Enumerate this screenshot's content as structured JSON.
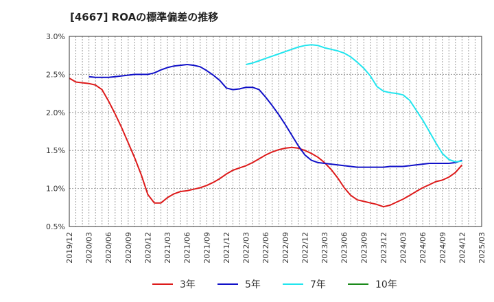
{
  "chart_data": {
    "type": "line",
    "title": "[4667]  ROAの標準偏差の推移",
    "xlabel": "",
    "ylabel": "",
    "ylim": [
      0.5,
      3.0
    ],
    "y_ticks": [
      "3.0%",
      "2.5%",
      "2.0%",
      "1.5%",
      "1.0%",
      "0.5%"
    ],
    "x_ticks": [
      "2019/12",
      "2020/03",
      "2020/06",
      "2020/09",
      "2020/12",
      "2021/03",
      "2021/06",
      "2021/09",
      "2021/12",
      "2022/03",
      "2022/06",
      "2022/09",
      "2022/12",
      "2023/03",
      "2023/06",
      "2023/09",
      "2023/12",
      "2024/03",
      "2024/06",
      "2024/09",
      "2024/12",
      "2025/03"
    ],
    "grid": true,
    "legend_position": "bottom",
    "series": [
      {
        "name": "3年",
        "color": "#dd1a1a",
        "points": [
          [
            "2019/12",
            2.45
          ],
          [
            "2020/01",
            2.4
          ],
          [
            "2020/02",
            2.39
          ],
          [
            "2020/03",
            2.38
          ],
          [
            "2020/04",
            2.36
          ],
          [
            "2020/05",
            2.3
          ],
          [
            "2020/06",
            2.15
          ],
          [
            "2020/07",
            1.98
          ],
          [
            "2020/08",
            1.8
          ],
          [
            "2020/09",
            1.6
          ],
          [
            "2020/10",
            1.4
          ],
          [
            "2020/11",
            1.18
          ],
          [
            "2020/12",
            0.92
          ],
          [
            "2021/01",
            0.81
          ],
          [
            "2021/02",
            0.81
          ],
          [
            "2021/03",
            0.88
          ],
          [
            "2021/04",
            0.93
          ],
          [
            "2021/05",
            0.96
          ],
          [
            "2021/06",
            0.97
          ],
          [
            "2021/07",
            0.99
          ],
          [
            "2021/08",
            1.01
          ],
          [
            "2021/09",
            1.04
          ],
          [
            "2021/10",
            1.08
          ],
          [
            "2021/11",
            1.13
          ],
          [
            "2021/12",
            1.19
          ],
          [
            "2022/01",
            1.24
          ],
          [
            "2022/02",
            1.27
          ],
          [
            "2022/03",
            1.3
          ],
          [
            "2022/04",
            1.34
          ],
          [
            "2022/05",
            1.39
          ],
          [
            "2022/06",
            1.44
          ],
          [
            "2022/07",
            1.48
          ],
          [
            "2022/08",
            1.51
          ],
          [
            "2022/09",
            1.53
          ],
          [
            "2022/10",
            1.54
          ],
          [
            "2022/11",
            1.53
          ],
          [
            "2022/12",
            1.5
          ],
          [
            "2023/01",
            1.46
          ],
          [
            "2023/02",
            1.41
          ],
          [
            "2023/03",
            1.34
          ],
          [
            "2023/04",
            1.25
          ],
          [
            "2023/05",
            1.14
          ],
          [
            "2023/06",
            1.01
          ],
          [
            "2023/07",
            0.91
          ],
          [
            "2023/08",
            0.85
          ],
          [
            "2023/09",
            0.83
          ],
          [
            "2023/10",
            0.81
          ],
          [
            "2023/11",
            0.79
          ],
          [
            "2023/12",
            0.76
          ],
          [
            "2024/01",
            0.78
          ],
          [
            "2024/02",
            0.82
          ],
          [
            "2024/03",
            0.86
          ],
          [
            "2024/04",
            0.91
          ],
          [
            "2024/05",
            0.96
          ],
          [
            "2024/06",
            1.01
          ],
          [
            "2024/07",
            1.05
          ],
          [
            "2024/08",
            1.09
          ],
          [
            "2024/09",
            1.11
          ],
          [
            "2024/10",
            1.15
          ],
          [
            "2024/11",
            1.21
          ],
          [
            "2024/12",
            1.31
          ]
        ]
      },
      {
        "name": "5年",
        "color": "#1010c8",
        "points": [
          [
            "2020/03",
            2.47
          ],
          [
            "2020/04",
            2.46
          ],
          [
            "2020/05",
            2.46
          ],
          [
            "2020/06",
            2.46
          ],
          [
            "2020/07",
            2.47
          ],
          [
            "2020/08",
            2.48
          ],
          [
            "2020/09",
            2.49
          ],
          [
            "2020/10",
            2.5
          ],
          [
            "2020/11",
            2.5
          ],
          [
            "2020/12",
            2.5
          ],
          [
            "2021/01",
            2.52
          ],
          [
            "2021/02",
            2.56
          ],
          [
            "2021/03",
            2.59
          ],
          [
            "2021/04",
            2.61
          ],
          [
            "2021/05",
            2.62
          ],
          [
            "2021/06",
            2.63
          ],
          [
            "2021/07",
            2.62
          ],
          [
            "2021/08",
            2.6
          ],
          [
            "2021/09",
            2.55
          ],
          [
            "2021/10",
            2.49
          ],
          [
            "2021/11",
            2.42
          ],
          [
            "2021/12",
            2.32
          ],
          [
            "2022/01",
            2.3
          ],
          [
            "2022/02",
            2.31
          ],
          [
            "2022/03",
            2.33
          ],
          [
            "2022/04",
            2.33
          ],
          [
            "2022/05",
            2.3
          ],
          [
            "2022/06",
            2.2
          ],
          [
            "2022/07",
            2.09
          ],
          [
            "2022/08",
            1.97
          ],
          [
            "2022/09",
            1.84
          ],
          [
            "2022/10",
            1.7
          ],
          [
            "2022/11",
            1.56
          ],
          [
            "2022/12",
            1.44
          ],
          [
            "2023/01",
            1.37
          ],
          [
            "2023/02",
            1.34
          ],
          [
            "2023/03",
            1.33
          ],
          [
            "2023/04",
            1.32
          ],
          [
            "2023/05",
            1.31
          ],
          [
            "2023/06",
            1.3
          ],
          [
            "2023/07",
            1.29
          ],
          [
            "2023/08",
            1.28
          ],
          [
            "2023/09",
            1.28
          ],
          [
            "2023/10",
            1.28
          ],
          [
            "2023/11",
            1.28
          ],
          [
            "2023/12",
            1.28
          ],
          [
            "2024/01",
            1.29
          ],
          [
            "2024/02",
            1.29
          ],
          [
            "2024/03",
            1.29
          ],
          [
            "2024/04",
            1.3
          ],
          [
            "2024/05",
            1.31
          ],
          [
            "2024/06",
            1.32
          ],
          [
            "2024/07",
            1.33
          ],
          [
            "2024/08",
            1.33
          ],
          [
            "2024/09",
            1.33
          ],
          [
            "2024/10",
            1.33
          ],
          [
            "2024/11",
            1.34
          ],
          [
            "2024/12",
            1.37
          ]
        ]
      },
      {
        "name": "7年",
        "color": "#22e5ee",
        "points": [
          [
            "2022/03",
            2.63
          ],
          [
            "2022/04",
            2.65
          ],
          [
            "2022/05",
            2.68
          ],
          [
            "2022/06",
            2.71
          ],
          [
            "2022/07",
            2.74
          ],
          [
            "2022/08",
            2.77
          ],
          [
            "2022/09",
            2.8
          ],
          [
            "2022/10",
            2.83
          ],
          [
            "2022/11",
            2.86
          ],
          [
            "2022/12",
            2.88
          ],
          [
            "2023/01",
            2.89
          ],
          [
            "2023/02",
            2.88
          ],
          [
            "2023/03",
            2.85
          ],
          [
            "2023/04",
            2.83
          ],
          [
            "2023/05",
            2.81
          ],
          [
            "2023/06",
            2.78
          ],
          [
            "2023/07",
            2.73
          ],
          [
            "2023/08",
            2.66
          ],
          [
            "2023/09",
            2.58
          ],
          [
            "2023/10",
            2.48
          ],
          [
            "2023/11",
            2.34
          ],
          [
            "2023/12",
            2.28
          ],
          [
            "2024/01",
            2.26
          ],
          [
            "2024/02",
            2.25
          ],
          [
            "2024/03",
            2.23
          ],
          [
            "2024/04",
            2.16
          ],
          [
            "2024/05",
            2.03
          ],
          [
            "2024/06",
            1.9
          ],
          [
            "2024/07",
            1.75
          ],
          [
            "2024/08",
            1.6
          ],
          [
            "2024/09",
            1.46
          ],
          [
            "2024/10",
            1.38
          ],
          [
            "2024/11",
            1.35
          ],
          [
            "2024/12",
            1.36
          ]
        ]
      },
      {
        "name": "10年",
        "color": "#1a8a1a",
        "points": []
      }
    ]
  }
}
